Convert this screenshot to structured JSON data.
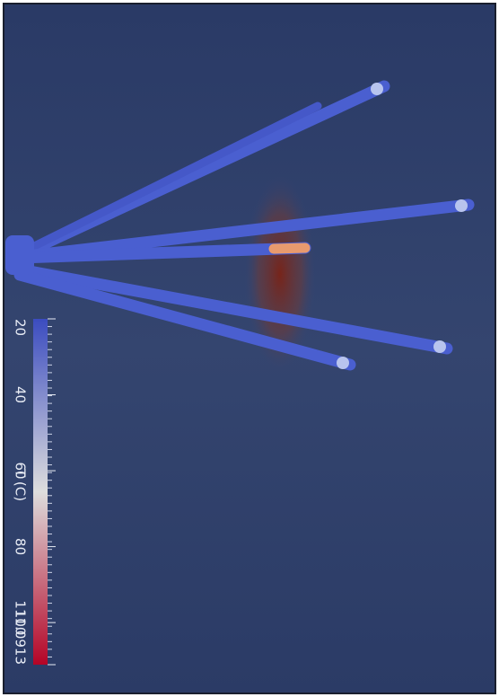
{
  "colorbar": {
    "title": "T (C)",
    "range": [
      20,
      111.0913
    ],
    "ticks": [
      40,
      60,
      80,
      100
    ],
    "colors": [
      "#3b4cc0",
      "#dddddd",
      "#b40426"
    ]
  }
}
